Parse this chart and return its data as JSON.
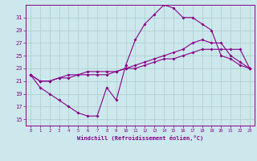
{
  "xlabel": "Windchill (Refroidissement éolien,°C)",
  "xlim": [
    -0.5,
    23.5
  ],
  "ylim": [
    14,
    33
  ],
  "yticks": [
    15,
    17,
    19,
    21,
    23,
    25,
    27,
    29,
    31
  ],
  "xticks": [
    0,
    1,
    2,
    3,
    4,
    5,
    6,
    7,
    8,
    9,
    10,
    11,
    12,
    13,
    14,
    15,
    16,
    17,
    18,
    19,
    20,
    21,
    22,
    23
  ],
  "bg_color": "#cce8ec",
  "grid_color": "#aacccc",
  "line_color": "#880088",
  "line1_x": [
    0,
    1,
    2,
    3,
    4,
    5,
    6,
    7,
    8,
    9,
    10,
    11,
    12,
    13,
    14,
    15,
    16,
    17,
    18,
    19,
    20,
    21,
    22,
    23
  ],
  "line1_y": [
    22,
    20,
    19,
    18,
    17,
    16,
    15.5,
    15.5,
    20,
    18,
    23.5,
    27.5,
    30,
    31.5,
    33,
    32.5,
    31,
    31,
    30,
    29,
    25,
    24.5,
    23.5,
    23
  ],
  "line2_x": [
    0,
    1,
    2,
    3,
    4,
    5,
    6,
    7,
    8,
    9,
    10,
    11,
    12,
    13,
    14,
    15,
    16,
    17,
    18,
    19,
    20,
    21,
    22,
    23
  ],
  "line2_y": [
    22,
    21,
    21,
    21.5,
    21.5,
    22,
    22,
    22,
    22,
    22.5,
    23,
    23.5,
    24,
    24.5,
    25,
    25.5,
    26,
    27,
    27.5,
    27,
    27,
    25,
    24,
    23
  ],
  "line3_x": [
    0,
    1,
    2,
    3,
    4,
    5,
    6,
    7,
    8,
    9,
    10,
    11,
    12,
    13,
    14,
    15,
    16,
    17,
    18,
    19,
    20,
    21,
    22,
    23
  ],
  "line3_y": [
    22,
    21,
    21,
    21.5,
    22,
    22,
    22.5,
    22.5,
    22.5,
    22.5,
    23,
    23,
    23.5,
    24,
    24.5,
    24.5,
    25,
    25.5,
    26,
    26,
    26,
    26,
    26,
    23
  ]
}
